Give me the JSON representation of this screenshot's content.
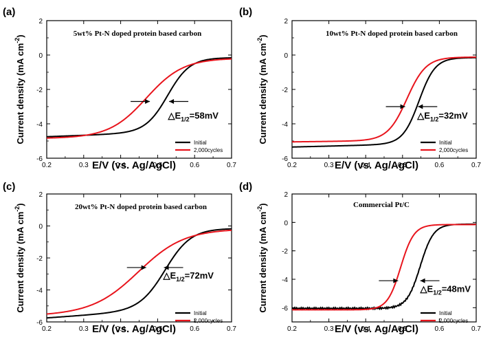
{
  "figure": {
    "xlabel": "E/V  (vs. Ag/AgCl)",
    "ylabel": "Current density (mA cm",
    "ylabel_sup": "-2",
    "ylabel_close": ")"
  },
  "chart_data": [
    {
      "type": "line",
      "panel_label": "(a)",
      "title": "5wt% Pt-N doped protein based carbon",
      "xlim": [
        0.2,
        0.7
      ],
      "ylim": [
        -6,
        2
      ],
      "xticks": [
        "0.2",
        "0.3",
        "0.4",
        "0.5",
        "0.6",
        "0.7"
      ],
      "yticks": [
        "-6",
        "-4",
        "-2",
        "0",
        "2"
      ],
      "legend": [
        "Initial",
        "2,000cycles"
      ],
      "annotation": "△E",
      "annotation_sub": "1/2",
      "annotation_value": "=58mV",
      "annotation_data": {
        "x": 0.528,
        "y": -3.7
      },
      "arrows": [
        {
          "x": 0.479,
          "y": -2.7,
          "dir": "right"
        },
        {
          "x": 0.531,
          "y": -2.7,
          "dir": "left"
        }
      ],
      "series": [
        {
          "name": "Initial",
          "color": "#000000",
          "params": {
            "E0": 0.528,
            "s": 0.03,
            "L": -4.75,
            "R": -0.15,
            "k": 0.9
          }
        },
        {
          "name": "2,000cycles",
          "color": "#e8141c",
          "params": {
            "E0": 0.47,
            "s": 0.05,
            "L": -4.85,
            "R": -0.18,
            "k": 0.2
          }
        }
      ]
    },
    {
      "type": "line",
      "panel_label": "(b)",
      "title": "10wt% Pt-N doped protein based carbon",
      "xlim": [
        0.2,
        0.7
      ],
      "ylim": [
        -6,
        2
      ],
      "xticks": [
        "0.2",
        "0.3",
        "0.4",
        "0.5",
        "0.6",
        "0.7"
      ],
      "yticks": [
        "-6",
        "-4",
        "-2",
        "0",
        "2"
      ],
      "legend": [
        "Initial",
        "2,000cycles"
      ],
      "annotation": "△E",
      "annotation_sub": "1/2",
      "annotation_value": "=32mV",
      "annotation_data": {
        "x": 0.54,
        "y": -3.7
      },
      "arrows": [
        {
          "x": 0.507,
          "y": -3.0,
          "dir": "right"
        },
        {
          "x": 0.542,
          "y": -3.0,
          "dir": "left"
        }
      ],
      "series": [
        {
          "name": "Initial",
          "color": "#000000",
          "params": {
            "E0": 0.545,
            "s": 0.022,
            "L": -5.35,
            "R": -0.15,
            "k": 0.6
          }
        },
        {
          "name": "2,000cycles",
          "color": "#e8141c",
          "params": {
            "E0": 0.512,
            "s": 0.026,
            "L": -5.05,
            "R": -0.12,
            "k": 0.3
          }
        }
      ]
    },
    {
      "type": "line",
      "panel_label": "(c)",
      "title": "20wt% Pt-N doped protein based carbon",
      "xlim": [
        0.2,
        0.7
      ],
      "ylim": [
        -6,
        2
      ],
      "xticks": [
        "0.2",
        "0.3",
        "0.4",
        "0.5",
        "0.6",
        "0.7"
      ],
      "yticks": [
        "-6",
        "-4",
        "-2",
        "0",
        "2"
      ],
      "legend": [
        "Initial",
        "2,000cycles"
      ],
      "annotation": "△E",
      "annotation_sub": "1/2",
      "annotation_value": "=72mV",
      "annotation_data": {
        "x": 0.515,
        "y": -3.3
      },
      "arrows": [
        {
          "x": 0.469,
          "y": -2.6,
          "dir": "right"
        },
        {
          "x": 0.517,
          "y": -2.6,
          "dir": "left"
        }
      ],
      "series": [
        {
          "name": "Initial",
          "color": "#000000",
          "params": {
            "E0": 0.522,
            "s": 0.035,
            "L": -5.75,
            "R": -0.15,
            "k": 1.8
          }
        },
        {
          "name": "2,000cycles",
          "color": "#e8141c",
          "params": {
            "E0": 0.45,
            "s": 0.062,
            "L": -5.6,
            "R": -0.18,
            "k": 0.6
          }
        }
      ]
    },
    {
      "type": "line",
      "panel_label": "(d)",
      "title": "Commercial Pt/C",
      "xlim": [
        0.2,
        0.7
      ],
      "ylim": [
        -7,
        2
      ],
      "xticks": [
        "0.2",
        "0.3",
        "0.4",
        "0.5",
        "0.6",
        "0.7"
      ],
      "yticks": [
        "-6",
        "-4",
        "-2",
        "0",
        "2"
      ],
      "legend": [
        "Initial",
        "2,000cycles"
      ],
      "annotation": "△E",
      "annotation_sub": "1/2",
      "annotation_value": "=48mV",
      "annotation_data": {
        "x": 0.548,
        "y": -4.9
      },
      "arrows": [
        {
          "x": 0.488,
          "y": -4.1,
          "dir": "right"
        },
        {
          "x": 0.548,
          "y": -4.1,
          "dir": "left"
        }
      ],
      "series": [
        {
          "name": "Initial",
          "color": "#000000",
          "params": {
            "E0": 0.548,
            "s": 0.018,
            "L": -6.05,
            "R": -0.12,
            "k": 0.0,
            "noise": 0.06
          }
        },
        {
          "name": "2,000cycles",
          "color": "#e8141c",
          "params": {
            "E0": 0.495,
            "s": 0.018,
            "L": -6.15,
            "R": -0.15,
            "k": 0.0
          }
        }
      ]
    }
  ]
}
